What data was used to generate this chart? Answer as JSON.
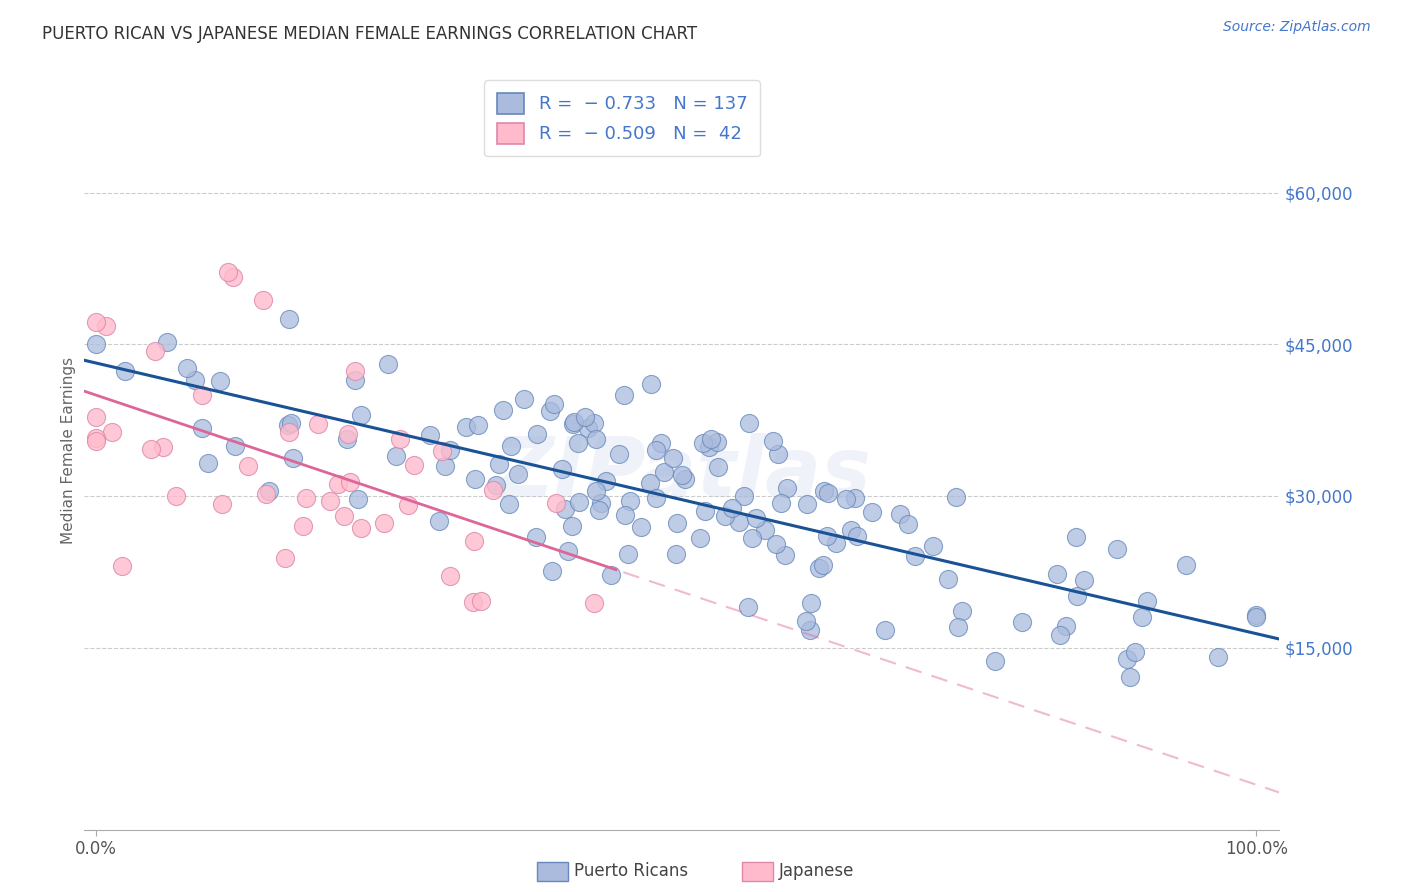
{
  "title": "PUERTO RICAN VS JAPANESE MEDIAN FEMALE EARNINGS CORRELATION CHART",
  "source": "Source: ZipAtlas.com",
  "ylabel": "Median Female Earnings",
  "background_color": "#ffffff",
  "grid_color": "#cccccc",
  "blue_scatter_face": "#aabbdd",
  "blue_scatter_edge": "#6688bb",
  "pink_scatter_face": "#ffbbcc",
  "pink_scatter_edge": "#dd88aa",
  "blue_line_color": "#1a5296",
  "pink_line_color": "#dd6699",
  "axis_label_color": "#4477cc",
  "title_color": "#333333",
  "source_color": "#4477cc",
  "watermark": "ZIPatlas",
  "watermark_color": "#aabbdd",
  "legend_color_r": "#4477cc",
  "legend_color_text": "#333333",
  "blue_n": 137,
  "pink_n": 42,
  "blue_seed": 7,
  "pink_seed": 13,
  "ylim_low": -3000,
  "ylim_high": 72000,
  "xlim_low": -0.01,
  "xlim_high": 1.02
}
